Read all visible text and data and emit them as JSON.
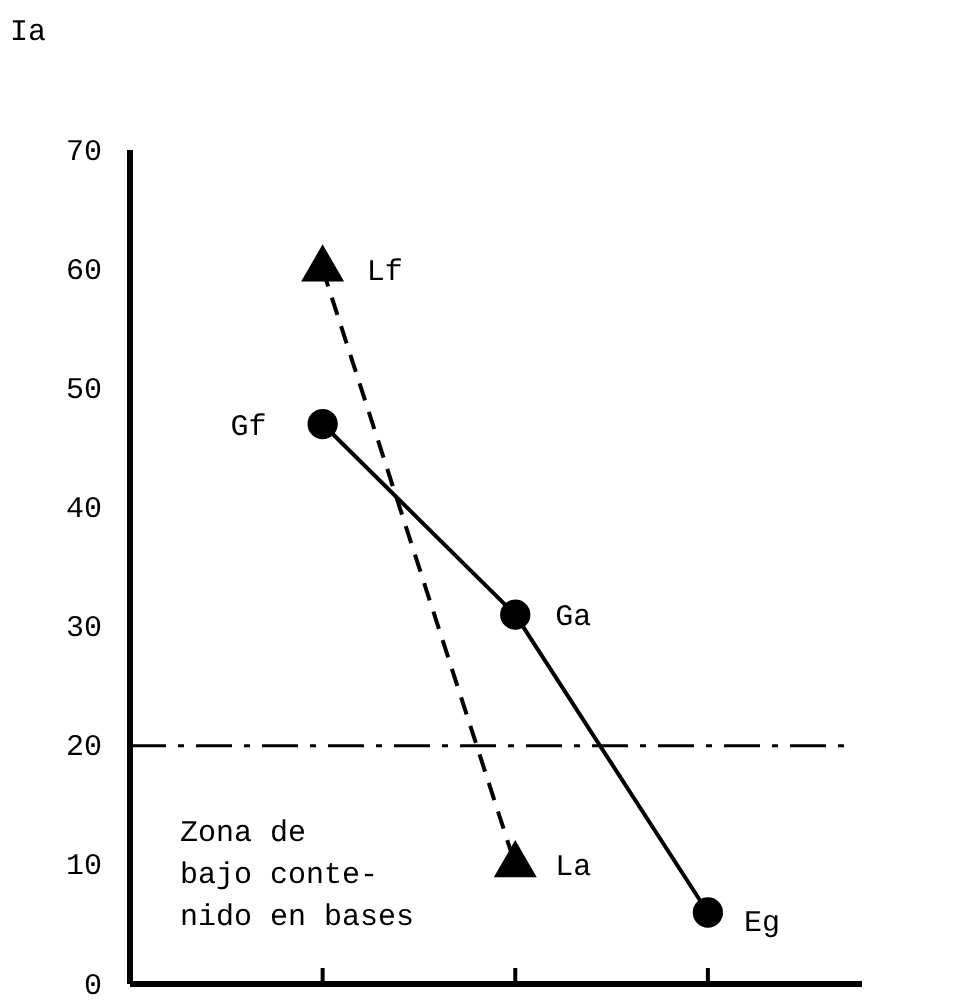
{
  "chart_data": {
    "type": "line",
    "ylabel": "Ia",
    "categories": [
      null,
      null,
      null
    ],
    "ylim": [
      0,
      70
    ],
    "yticks": [
      0,
      10,
      20,
      30,
      40,
      50,
      60,
      70
    ],
    "grid": false,
    "series": [
      {
        "color": "#000000",
        "marker": "circle",
        "line_style": "solid",
        "values": [
          47,
          31,
          6
        ]
      },
      {
        "color": "#000000",
        "marker": "triangle",
        "line_style": "dashed",
        "values": [
          60,
          10,
          null
        ]
      }
    ],
    "ref_lines": [
      {
        "axis": "y",
        "value": 20,
        "color": "#000000",
        "line_style": "dashdot"
      }
    ],
    "annotations": [
      "Gf",
      "Ga",
      "Eg",
      "Lf",
      "La",
      "Zona de\nbajo conte-\nnido en bases"
    ]
  }
}
